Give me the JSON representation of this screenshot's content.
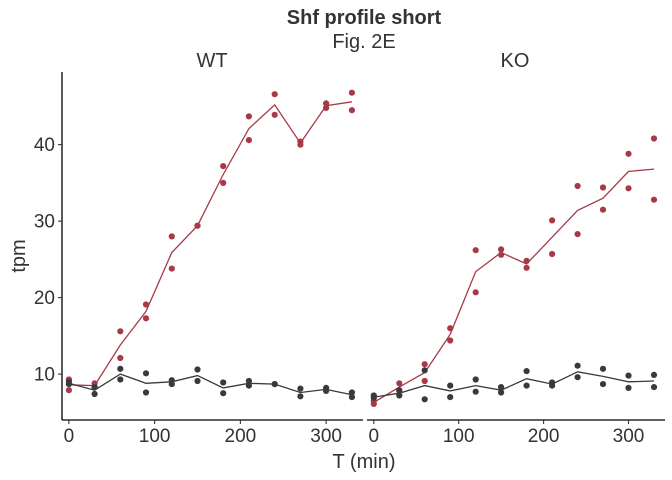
{
  "chart_data": {
    "type": "scatter",
    "title": "Shf profile short",
    "subtitle": "Fig. 2E",
    "xlabel": "T (min)",
    "ylabel": "tpm",
    "xlim": [
      -8,
      343
    ],
    "ylim": [
      4,
      49.5
    ],
    "xticks": [
      0,
      100,
      200,
      300
    ],
    "yticks": [
      10,
      20,
      30,
      40
    ],
    "grid": false,
    "legend": "none",
    "colors": {
      "red": "#a83a48",
      "grey": "#3a3a3a"
    },
    "facets": [
      {
        "label": "WT",
        "series": [
          {
            "color": "red",
            "points": [
              [
                0,
                9.3
              ],
              [
                0,
                7.9
              ],
              [
                30,
                8.8
              ],
              [
                30,
                8.3
              ],
              [
                60,
                15.6
              ],
              [
                60,
                12.1
              ],
              [
                90,
                19.1
              ],
              [
                90,
                17.3
              ],
              [
                120,
                28.0
              ],
              [
                120,
                23.8
              ],
              [
                150,
                29.4
              ],
              [
                150,
                29.4
              ],
              [
                180,
                37.2
              ],
              [
                180,
                35.0
              ],
              [
                210,
                43.7
              ],
              [
                210,
                40.6
              ],
              [
                240,
                46.6
              ],
              [
                240,
                43.9
              ],
              [
                270,
                40.4
              ],
              [
                270,
                40.0
              ],
              [
                300,
                45.4
              ],
              [
                300,
                44.8
              ],
              [
                330,
                46.8
              ],
              [
                330,
                44.5
              ]
            ],
            "line": [
              [
                0,
                8.6
              ],
              [
                30,
                8.5
              ],
              [
                60,
                13.8
              ],
              [
                90,
                18.2
              ],
              [
                120,
                25.9
              ],
              [
                150,
                29.4
              ],
              [
                180,
                36.1
              ],
              [
                210,
                42.1
              ],
              [
                240,
                45.2
              ],
              [
                270,
                40.2
              ],
              [
                300,
                45.1
              ],
              [
                330,
                45.6
              ]
            ]
          },
          {
            "color": "grey",
            "points": [
              [
                0,
                9.0
              ],
              [
                0,
                8.7
              ],
              [
                30,
                8.3
              ],
              [
                30,
                7.4
              ],
              [
                60,
                10.7
              ],
              [
                60,
                9.3
              ],
              [
                90,
                10.1
              ],
              [
                90,
                7.6
              ],
              [
                120,
                9.2
              ],
              [
                120,
                8.7
              ],
              [
                150,
                10.6
              ],
              [
                150,
                9.1
              ],
              [
                180,
                8.9
              ],
              [
                180,
                7.5
              ],
              [
                210,
                9.1
              ],
              [
                210,
                8.5
              ],
              [
                240,
                8.7
              ],
              [
                240,
                8.7
              ],
              [
                270,
                8.1
              ],
              [
                270,
                7.1
              ],
              [
                300,
                8.2
              ],
              [
                300,
                7.8
              ],
              [
                330,
                7.6
              ],
              [
                330,
                7.0
              ]
            ],
            "line": [
              [
                0,
                8.8
              ],
              [
                30,
                7.9
              ],
              [
                60,
                10.0
              ],
              [
                90,
                8.8
              ],
              [
                120,
                9.0
              ],
              [
                150,
                9.8
              ],
              [
                180,
                8.2
              ],
              [
                210,
                8.8
              ],
              [
                240,
                8.7
              ],
              [
                270,
                7.6
              ],
              [
                300,
                8.0
              ],
              [
                330,
                7.3
              ]
            ]
          }
        ]
      },
      {
        "label": "KO",
        "series": [
          {
            "color": "red",
            "points": [
              [
                0,
                6.5
              ],
              [
                0,
                6.1
              ],
              [
                30,
                8.8
              ],
              [
                30,
                7.8
              ],
              [
                60,
                11.3
              ],
              [
                60,
                9.1
              ],
              [
                90,
                16.0
              ],
              [
                90,
                14.4
              ],
              [
                120,
                26.2
              ],
              [
                120,
                20.7
              ],
              [
                150,
                26.3
              ],
              [
                150,
                25.6
              ],
              [
                180,
                24.8
              ],
              [
                180,
                23.9
              ],
              [
                210,
                30.1
              ],
              [
                210,
                25.7
              ],
              [
                240,
                34.6
              ],
              [
                240,
                28.3
              ],
              [
                270,
                34.4
              ],
              [
                270,
                31.5
              ],
              [
                300,
                38.8
              ],
              [
                300,
                34.3
              ],
              [
                330,
                40.8
              ],
              [
                330,
                32.8
              ]
            ],
            "line": [
              [
                0,
                6.3
              ],
              [
                30,
                8.3
              ],
              [
                60,
                10.2
              ],
              [
                90,
                15.2
              ],
              [
                120,
                23.4
              ],
              [
                150,
                25.9
              ],
              [
                180,
                24.4
              ],
              [
                210,
                27.9
              ],
              [
                240,
                31.4
              ],
              [
                270,
                33.0
              ],
              [
                300,
                36.5
              ],
              [
                330,
                36.8
              ]
            ]
          },
          {
            "color": "grey",
            "points": [
              [
                0,
                7.2
              ],
              [
                0,
                6.9
              ],
              [
                30,
                7.9
              ],
              [
                30,
                7.2
              ],
              [
                60,
                10.5
              ],
              [
                60,
                6.7
              ],
              [
                90,
                8.5
              ],
              [
                90,
                7.0
              ],
              [
                120,
                9.3
              ],
              [
                120,
                7.7
              ],
              [
                150,
                8.3
              ],
              [
                150,
                7.6
              ],
              [
                180,
                10.4
              ],
              [
                180,
                8.5
              ],
              [
                210,
                8.9
              ],
              [
                210,
                8.5
              ],
              [
                240,
                11.1
              ],
              [
                240,
                9.6
              ],
              [
                270,
                10.7
              ],
              [
                270,
                8.7
              ],
              [
                300,
                9.8
              ],
              [
                300,
                8.2
              ],
              [
                330,
                9.9
              ],
              [
                330,
                8.3
              ]
            ],
            "line": [
              [
                0,
                7.0
              ],
              [
                30,
                7.5
              ],
              [
                60,
                8.5
              ],
              [
                90,
                7.8
              ],
              [
                120,
                8.5
              ],
              [
                150,
                7.9
              ],
              [
                180,
                9.4
              ],
              [
                210,
                8.7
              ],
              [
                240,
                10.3
              ],
              [
                270,
                9.7
              ],
              [
                300,
                9.0
              ],
              [
                330,
                9.1
              ]
            ]
          }
        ]
      }
    ]
  }
}
